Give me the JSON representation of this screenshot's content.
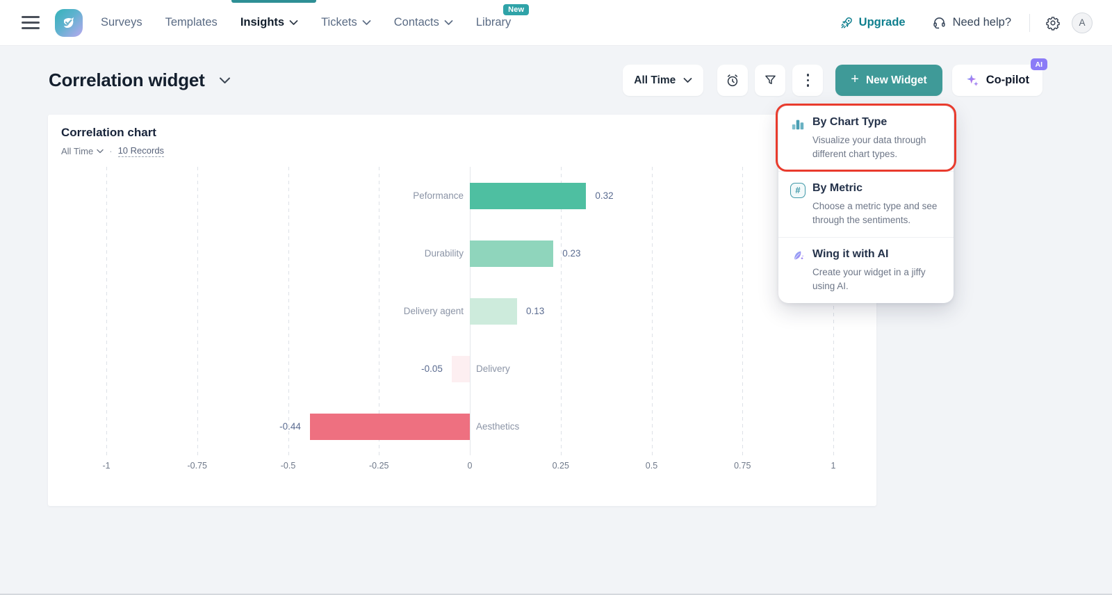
{
  "topnav": {
    "items": [
      {
        "label": "Surveys",
        "chevron": false,
        "active": false
      },
      {
        "label": "Templates",
        "chevron": false,
        "active": false
      },
      {
        "label": "Insights",
        "chevron": true,
        "active": true
      },
      {
        "label": "Tickets",
        "chevron": true,
        "active": false
      },
      {
        "label": "Contacts",
        "chevron": true,
        "active": false
      },
      {
        "label": "Library",
        "chevron": false,
        "active": false
      }
    ],
    "library_badge": "New",
    "upgrade_label": "Upgrade",
    "need_help_label": "Need help?",
    "avatar_initial": "A"
  },
  "header": {
    "title": "Correlation widget",
    "time_filter": "All Time",
    "new_widget_label": "New Widget",
    "copilot_label": "Co-pilot",
    "ai_badge": "AI"
  },
  "chart_card": {
    "title": "Correlation chart",
    "time_filter": "All Time",
    "separator": "·",
    "records": "10 Records"
  },
  "chart_data": {
    "type": "bar",
    "orientation": "horizontal",
    "title": "Correlation chart",
    "categories": [
      "Peformance",
      "Durability",
      "Delivery agent",
      "Delivery",
      "Aesthetics"
    ],
    "values": [
      0.32,
      0.23,
      0.13,
      -0.05,
      -0.44
    ],
    "value_labels": [
      "0.32",
      "0.23",
      "0.13",
      "-0.05",
      "-0.44"
    ],
    "bar_colors": [
      "#4ebfa1",
      "#8fd5bc",
      "#cdebdc",
      "#fdeff1",
      "#ee7080"
    ],
    "xlim": [
      -1,
      1
    ],
    "xticks": [
      -1,
      -0.75,
      -0.5,
      -0.25,
      0,
      0.25,
      0.5,
      0.75,
      1
    ],
    "xtick_labels": [
      "-1",
      "-0.75",
      "-0.5",
      "-0.25",
      "0",
      "0.25",
      "0.5",
      "0.75",
      "1"
    ],
    "grid": "dashed-vertical",
    "legend": "none"
  },
  "menu": {
    "items": [
      {
        "title": "By Chart Type",
        "description": "Visualize your data through different chart types.",
        "icon": "bar-chart-icon",
        "highlighted": true
      },
      {
        "title": "By Metric",
        "description": "Choose a metric type and see through the sentiments.",
        "icon": "hash-icon",
        "highlighted": false
      },
      {
        "title": "Wing it with AI",
        "description": "Create your widget in a jiffy using AI.",
        "icon": "feather-ai-icon",
        "highlighted": false
      }
    ]
  },
  "colors": {
    "teal_primary": "#3f9a98",
    "nav_active_indicator": "#2e8f95",
    "badge_teal": "#2fa3a8",
    "ai_purple": "#8b7bf7",
    "upgrade_teal": "#0f7f8e",
    "highlight_red": "#e93b2d"
  }
}
